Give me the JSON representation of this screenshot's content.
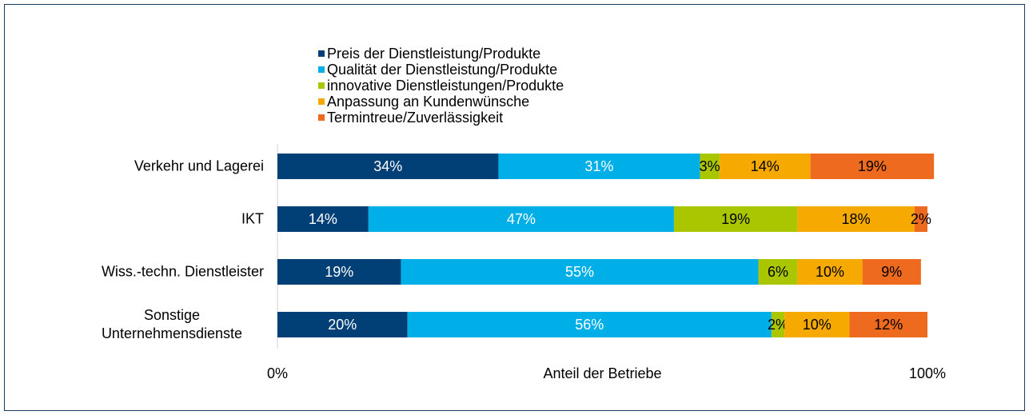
{
  "chart_data": {
    "type": "stacked_bar_horizontal",
    "categories": [
      "Verkehr und Lagerei",
      "IKT",
      "Wiss.-techn. Dienstleister",
      "Sonstige Unternehmensdienste"
    ],
    "series": [
      {
        "name": "Preis der Dienstleistung/Produkte",
        "color": "#004077",
        "label_color": "#ffffff",
        "values": [
          34,
          14,
          19,
          20
        ],
        "value_labels": [
          "34%",
          "14%",
          "19%",
          "20%"
        ]
      },
      {
        "name": "Qualität der Dienstleistung/Produkte",
        "color": "#00aee8",
        "label_color": "#ffffff",
        "values": [
          31,
          47,
          55,
          56
        ],
        "value_labels": [
          "31%",
          "47%",
          "55%",
          "56%"
        ]
      },
      {
        "name": "innovative Dienstleistungen/Produkte",
        "color": "#a9c600",
        "label_color": "#000000",
        "values": [
          3,
          19,
          6,
          2
        ],
        "value_labels": [
          "3%",
          "19%",
          "6%",
          "2%"
        ]
      },
      {
        "name": "Anpassung an Kundenwünsche",
        "color": "#f6a900",
        "label_color": "#000000",
        "values": [
          14,
          18,
          10,
          10
        ],
        "value_labels": [
          "14%",
          "18%",
          "10%",
          "10%"
        ]
      },
      {
        "name": "Termintreue/Zuverlässigkeit",
        "color": "#ed6a1e",
        "label_color": "#000000",
        "values": [
          19,
          2,
          9,
          12
        ],
        "value_labels": [
          "19%",
          "2%",
          "9%",
          "12%"
        ]
      }
    ],
    "xlabel": "Anteil der Betriebe",
    "xlim": [
      0,
      100
    ],
    "xticks": [
      {
        "value": 0,
        "label": "0%"
      },
      {
        "value": 100,
        "label": "100%"
      }
    ],
    "grid": false,
    "legend": "top"
  }
}
